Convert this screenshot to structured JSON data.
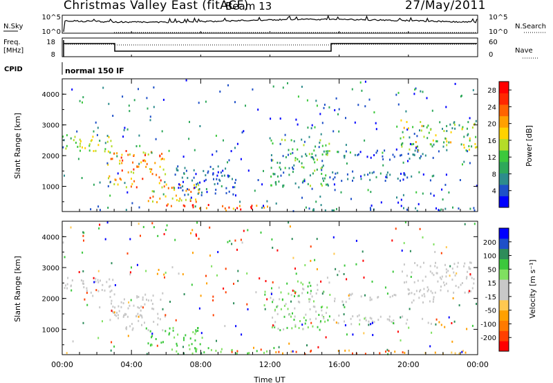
{
  "header": {
    "title": "Christmas Valley East (fitACF)",
    "beam": "Beam 13",
    "date": "27/May/2011"
  },
  "nsky_panel": {
    "left_label": "N.Sky",
    "right_label": "N.Search",
    "left_ticks": [
      "10^5",
      "10^0"
    ],
    "right_ticks": [
      "10^5",
      "10^0"
    ]
  },
  "freq_panel": {
    "left_label_line1": "Freq.",
    "left_label_line2": "[MHz]",
    "right_label": "Nave",
    "left_ticks": [
      "18",
      "8"
    ],
    "right_ticks": [
      "60",
      "0"
    ]
  },
  "cpid": {
    "label": "CPID",
    "value": "normal 150 IF"
  },
  "x_axis": {
    "title": "Time UT",
    "ticks": [
      "00:00",
      "04:00",
      "08:00",
      "12:00",
      "16:00",
      "20:00",
      "00:00"
    ]
  },
  "colors": {
    "power_scale": [
      "#0000ff",
      "#1e50c8",
      "#2d8c8c",
      "#2ea85a",
      "#3cc83c",
      "#b4dc28",
      "#ffd200",
      "#ffa000",
      "#ff6400",
      "#ff2800",
      "#ff0000"
    ],
    "velocity_scale": [
      "#ff0000",
      "#ff4000",
      "#ff7a00",
      "#ffa000",
      "#ffc850",
      "#c8c8c8",
      "#c8c8c8",
      "#80e060",
      "#3cc83c",
      "#2e8c5a",
      "#1e50c8",
      "#0000ff"
    ]
  },
  "chart_data": [
    {
      "type": "heatmap",
      "name": "power",
      "ylabel": "Slant Range [km]",
      "yticks": [
        "1000",
        "2000",
        "3000",
        "4000"
      ],
      "ylim": [
        180,
        4500
      ],
      "xlim_hours": [
        0,
        24
      ],
      "colorbar": {
        "label": "Power [dB]",
        "ticks": [
          "4",
          "8",
          "12",
          "16",
          "20",
          "24",
          "28"
        ],
        "range": [
          0,
          30
        ]
      },
      "blobs": [
        {
          "t0": 0.0,
          "t1": 3.0,
          "r0": 2100,
          "r1": 2700,
          "v0": 10,
          "v1": 18
        },
        {
          "t0": 2.6,
          "t1": 6.0,
          "r0": 1000,
          "r1": 2200,
          "v0": 14,
          "v1": 26
        },
        {
          "t0": 4.8,
          "t1": 8.0,
          "r0": 500,
          "r1": 1100,
          "v0": 14,
          "v1": 26
        },
        {
          "t0": 6.0,
          "t1": 12.0,
          "r0": 200,
          "r1": 450,
          "v0": 18,
          "v1": 30
        },
        {
          "t0": 6.5,
          "t1": 10.0,
          "r0": 700,
          "r1": 1700,
          "v0": 2,
          "v1": 8
        },
        {
          "t0": 12.0,
          "t1": 15.5,
          "r0": 1000,
          "r1": 2600,
          "v0": 4,
          "v1": 16
        },
        {
          "t0": 15.5,
          "t1": 21.5,
          "r0": 1200,
          "r1": 1500,
          "v0": 2,
          "v1": 8
        },
        {
          "t0": 15.5,
          "t1": 21.5,
          "r0": 1900,
          "r1": 2200,
          "v0": 2,
          "v1": 8
        },
        {
          "t0": 19.5,
          "t1": 24.0,
          "r0": 2200,
          "r1": 3200,
          "v0": 6,
          "v1": 20
        },
        {
          "t0": 12.0,
          "t1": 24.0,
          "r0": 200,
          "r1": 350,
          "v0": 2,
          "v1": 10
        }
      ]
    },
    {
      "type": "heatmap",
      "name": "velocity",
      "ylabel": "Slant Range [km]",
      "yticks": [
        "1000",
        "2000",
        "3000",
        "4000"
      ],
      "ylim": [
        180,
        4500
      ],
      "xlim_hours": [
        0,
        24
      ],
      "colorbar": {
        "label": "Velocity [m s⁻¹]",
        "ticks": [
          "200",
          "100",
          "50",
          "15",
          "-15",
          "-50",
          "-100",
          "-200"
        ]
      },
      "blobs": [
        {
          "t0": 0.0,
          "t1": 3.0,
          "r0": 2100,
          "r1": 2700,
          "v0": -15,
          "v1": 15
        },
        {
          "t0": 2.6,
          "t1": 6.0,
          "r0": 1000,
          "r1": 2200,
          "v0": -15,
          "v1": 15
        },
        {
          "t0": 4.8,
          "t1": 8.0,
          "r0": 500,
          "r1": 1100,
          "v0": 15,
          "v1": 80
        },
        {
          "t0": 6.0,
          "t1": 12.0,
          "r0": 200,
          "r1": 450,
          "v0": 15,
          "v1": 60
        },
        {
          "t0": 12.0,
          "t1": 15.5,
          "r0": 1000,
          "r1": 2600,
          "v0": -15,
          "v1": 50
        },
        {
          "t0": 15.5,
          "t1": 21.5,
          "r0": 1200,
          "r1": 1500,
          "v0": -15,
          "v1": 15
        },
        {
          "t0": 15.5,
          "t1": 21.5,
          "r0": 1900,
          "r1": 2200,
          "v0": -15,
          "v1": 15
        },
        {
          "t0": 19.5,
          "t1": 24.0,
          "r0": 2200,
          "r1": 3200,
          "v0": -15,
          "v1": 15
        },
        {
          "t0": 12.0,
          "t1": 24.0,
          "r0": 200,
          "r1": 350,
          "v0": -100,
          "v1": -15
        }
      ]
    }
  ]
}
